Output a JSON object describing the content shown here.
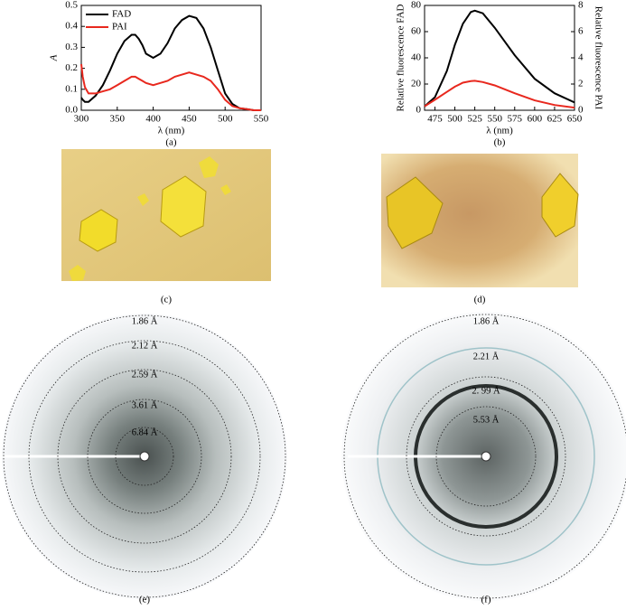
{
  "chart_data": [
    {
      "type": "line",
      "label": "(a)",
      "xlabel": "λ (nm)",
      "ylabel": "A",
      "x": [
        300,
        302,
        305,
        310,
        320,
        330,
        340,
        350,
        360,
        370,
        375,
        380,
        385,
        390,
        400,
        410,
        420,
        430,
        440,
        450,
        460,
        470,
        480,
        490,
        500,
        510,
        520,
        530,
        540,
        550
      ],
      "series": [
        {
          "name": "FAD",
          "color": "#000000",
          "values": [
            0.06,
            0.05,
            0.04,
            0.04,
            0.07,
            0.12,
            0.19,
            0.27,
            0.33,
            0.36,
            0.36,
            0.34,
            0.31,
            0.27,
            0.25,
            0.27,
            0.32,
            0.39,
            0.43,
            0.45,
            0.44,
            0.39,
            0.3,
            0.19,
            0.08,
            0.03,
            0.01,
            0.005,
            0.0,
            0.0
          ]
        },
        {
          "name": "PAI",
          "color": "#e8281e",
          "values": [
            0.22,
            0.16,
            0.11,
            0.08,
            0.08,
            0.09,
            0.1,
            0.12,
            0.14,
            0.16,
            0.16,
            0.15,
            0.14,
            0.13,
            0.12,
            0.13,
            0.14,
            0.16,
            0.17,
            0.18,
            0.17,
            0.16,
            0.14,
            0.1,
            0.05,
            0.02,
            0.01,
            0.005,
            0.0,
            0.0
          ]
        }
      ],
      "xlim": [
        300,
        550
      ],
      "xticks": [
        300,
        350,
        400,
        450,
        500,
        550
      ],
      "ylim": [
        0,
        0.5
      ],
      "yticks": [
        {
          "value": 0,
          "label": "0.0"
        },
        0.1,
        0.2,
        0.3,
        0.4,
        0.5
      ],
      "legend": "upper left"
    },
    {
      "type": "line",
      "label": "(b)",
      "xlabel": "λ (nm)",
      "ylabel": "Relative fluorescence FAD",
      "y2label": "Relative fluorescence PAI",
      "x": [
        462,
        475,
        490,
        500,
        510,
        520,
        525,
        535,
        550,
        575,
        600,
        625,
        650
      ],
      "series": [
        {
          "color": "#000000",
          "values": [
            3,
            10,
            30,
            50,
            66,
            75,
            76,
            74,
            63,
            42,
            24,
            13,
            6
          ]
        },
        {
          "color": "#e8281e",
          "axis": "y2",
          "values": [
            0.3,
            0.8,
            1.4,
            1.8,
            2.1,
            2.22,
            2.25,
            2.15,
            1.9,
            1.3,
            0.75,
            0.4,
            0.2
          ]
        }
      ],
      "xlim": [
        462,
        650
      ],
      "xticks": [
        475,
        500,
        525,
        550,
        575,
        600,
        625,
        650
      ],
      "ylim": [
        0,
        80
      ],
      "yticks": [
        0,
        20,
        40,
        60,
        80
      ],
      "y2lim": [
        0,
        8
      ],
      "y2ticks": [
        0,
        2,
        4,
        6,
        8
      ]
    }
  ],
  "panels": {
    "c": "(c)",
    "d": "(d)",
    "e": {
      "label": "(e)",
      "rings": [
        "1.86 Å",
        "2.12 Å",
        "2.59 Å",
        "3.61 Å",
        "6.84 Å"
      ]
    },
    "f": {
      "label": "(f)",
      "rings": [
        "1.86 Å",
        "2.21 Å",
        "2. 99 Å",
        "5.53 Å"
      ]
    }
  }
}
